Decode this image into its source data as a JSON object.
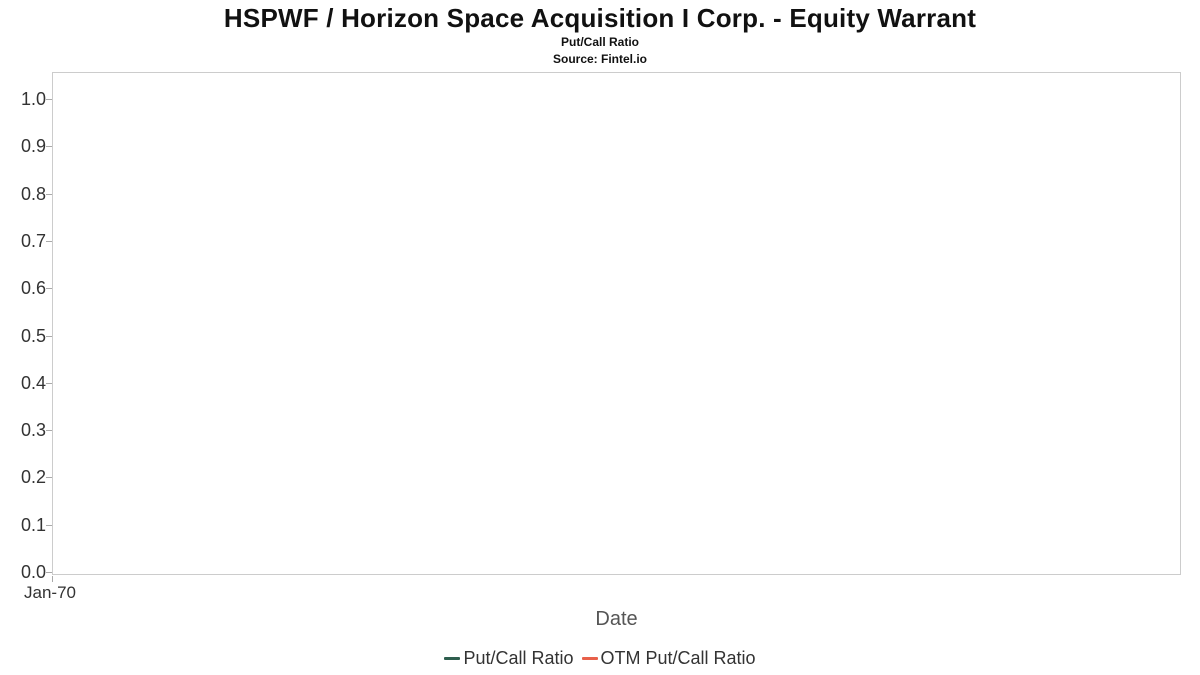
{
  "header": {
    "title": "HSPWF / Horizon Space Acquisition I Corp. - Equity Warrant",
    "subtitle": "Put/Call Ratio",
    "source": "Source: Fintel.io"
  },
  "chart_data": {
    "type": "line",
    "title": "HSPWF / Horizon Space Acquisition I Corp. - Equity Warrant",
    "subtitle": "Put/Call Ratio",
    "source": "Source: Fintel.io",
    "xlabel": "Date",
    "ylabel": "",
    "ylim": [
      0.0,
      1.0
    ],
    "y_ticks": [
      "1.0",
      "0.9",
      "0.8",
      "0.7",
      "0.6",
      "0.5",
      "0.4",
      "0.3",
      "0.2",
      "0.1",
      "0.0"
    ],
    "x_ticks": [
      "Jan-70"
    ],
    "grid": false,
    "legend_position": "bottom",
    "x": [],
    "series": [
      {
        "name": "Put/Call Ratio",
        "color": "#2e5e4e",
        "values": []
      },
      {
        "name": "OTM Put/Call Ratio",
        "color": "#e8604a",
        "values": []
      }
    ],
    "plot_border_color": "#cccccc",
    "note": "empty plot area - no data points rendered"
  }
}
